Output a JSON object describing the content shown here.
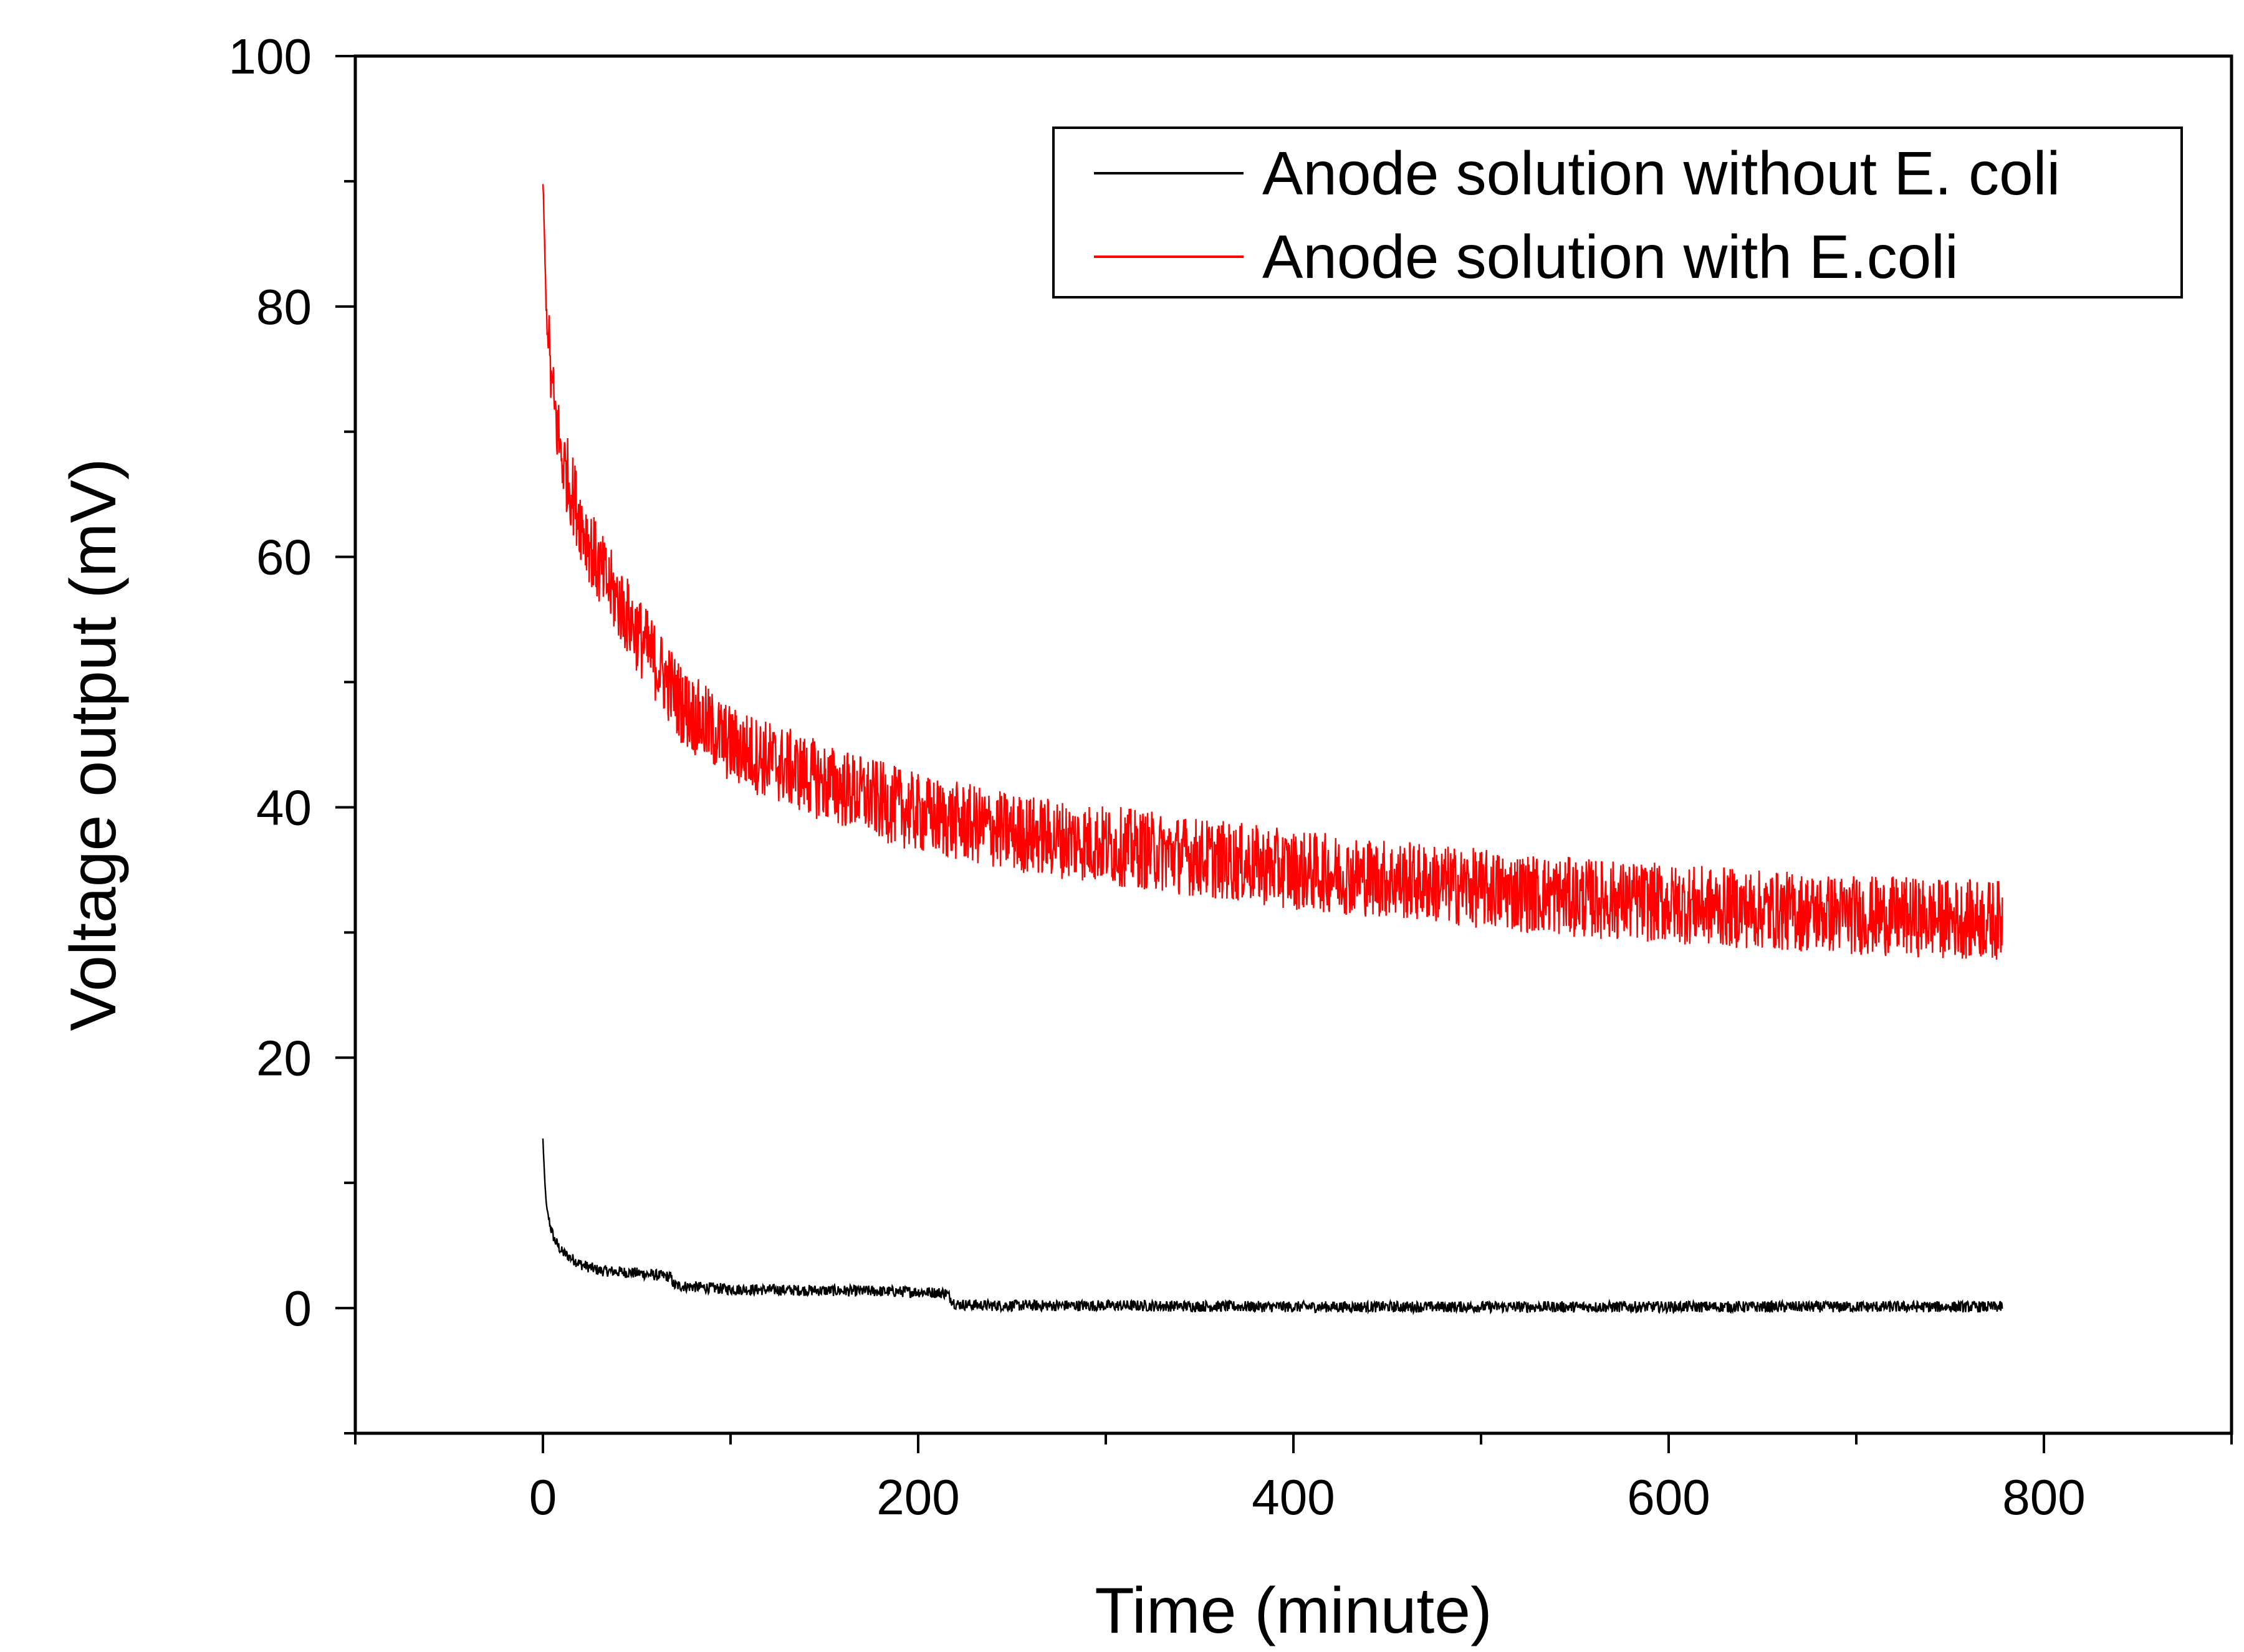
{
  "chart_data": {
    "type": "line",
    "xlabel": "Time (minute)",
    "ylabel": "Voltage output (mV)",
    "xlim": [
      -100,
      900
    ],
    "ylim": [
      -10,
      100
    ],
    "x_ticks": [
      0,
      200,
      400,
      600,
      800
    ],
    "x_tick_labels": [
      "0",
      "200",
      "400",
      "600",
      "800"
    ],
    "y_ticks": [
      0,
      20,
      40,
      60,
      80,
      100
    ],
    "y_tick_labels": [
      "0",
      "20",
      "40",
      "60",
      "80",
      "100"
    ],
    "x_minor_step": 100,
    "y_minor_step": 10,
    "grid": false,
    "legend_position": "top-right",
    "legend": [
      "Anode solution without E. coli",
      "Anode solution with E.coli"
    ],
    "series": [
      {
        "name": "Anode solution without E. coli",
        "color": "#000000",
        "noise": 0.45,
        "x": [
          0,
          1,
          2,
          4,
          6,
          8,
          10,
          15,
          20,
          30,
          50,
          68,
          70,
          100,
          150,
          200,
          215,
          220,
          240,
          300,
          400,
          500,
          600,
          700,
          778
        ],
        "y": [
          13.5,
          10,
          8,
          6.5,
          5.5,
          5,
          4.5,
          4,
          3.5,
          3,
          2.8,
          2.5,
          1.8,
          1.5,
          1.4,
          1.3,
          1.2,
          0.3,
          0.2,
          0.2,
          0.1,
          0.1,
          0.1,
          0.1,
          0.1
        ]
      },
      {
        "name": "Anode solution with E.coli",
        "color": "#ff0000",
        "noise": 3.2,
        "x": [
          0,
          1,
          2,
          5,
          10,
          20,
          30,
          50,
          75,
          100,
          150,
          200,
          250,
          300,
          350,
          400,
          450,
          500,
          550,
          600,
          650,
          700,
          750,
          778
        ],
        "y": [
          90,
          84,
          79,
          73,
          68,
          63,
          59,
          54,
          48,
          45,
          42,
          39.5,
          38,
          37,
          36,
          35,
          34.3,
          33.5,
          32.8,
          32.3,
          31.8,
          31.4,
          31.1,
          31
        ]
      }
    ]
  }
}
